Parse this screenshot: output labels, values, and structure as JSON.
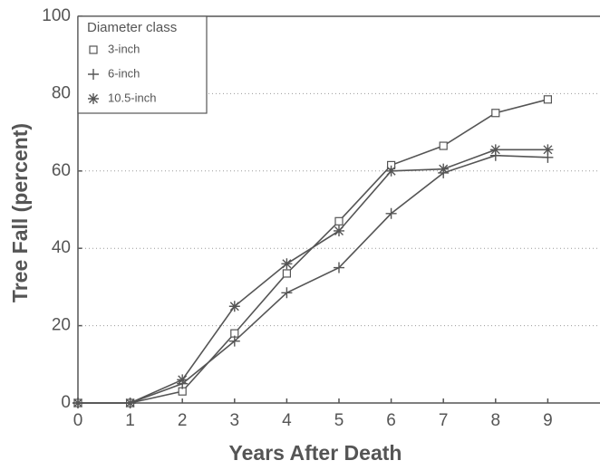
{
  "chart_data": {
    "type": "line",
    "xlabel": "Years After Death",
    "ylabel": "Tree Fall (percent)",
    "x": [
      0,
      1,
      2,
      3,
      4,
      5,
      6,
      7,
      8,
      9
    ],
    "series": [
      {
        "name": "3-inch",
        "color": "#555555",
        "marker": "square",
        "values": [
          0,
          0,
          3,
          18,
          33.5,
          47,
          61.5,
          66.5,
          75,
          78.5
        ]
      },
      {
        "name": "6-inch",
        "color": "#555555",
        "marker": "plus",
        "values": [
          0,
          0,
          5,
          16,
          28.5,
          35,
          49,
          59.5,
          64,
          63.5
        ]
      },
      {
        "name": "10.5-inch",
        "color": "#555555",
        "marker": "asterisk",
        "values": [
          0,
          0,
          6,
          25,
          36,
          44.5,
          60,
          60.5,
          65.5,
          65.5
        ]
      }
    ],
    "legend": {
      "title": "Diameter class",
      "position": "upper left"
    },
    "xlim": [
      0,
      10
    ],
    "xticks": [
      0,
      1,
      2,
      3,
      4,
      5,
      6,
      7,
      8,
      9
    ],
    "ylim": [
      0,
      100
    ],
    "yticks": [
      0,
      20,
      40,
      60,
      80,
      100
    ],
    "grid": true
  }
}
